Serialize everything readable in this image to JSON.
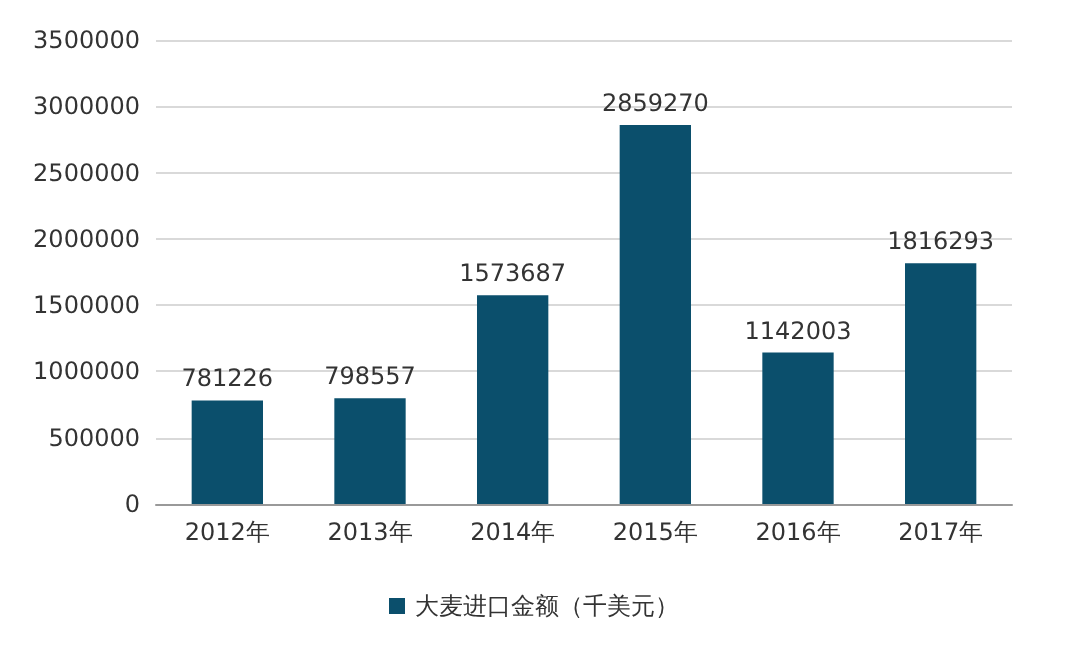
{
  "chart_data": {
    "type": "bar",
    "categories": [
      "2012年",
      "2013年",
      "2014年",
      "2015年",
      "2016年",
      "2017年"
    ],
    "series": [
      {
        "name": "大麦进口金额（千美元）",
        "color": "#0b4f6c",
        "values": [
          781226,
          798557,
          1573687,
          2859270,
          1142003,
          1816293
        ]
      }
    ],
    "ylim": [
      0,
      3500000
    ],
    "yticks": [
      0,
      500000,
      1000000,
      1500000,
      2000000,
      2500000,
      3000000,
      3500000
    ],
    "grid": "y",
    "legend": "bottom",
    "data_labels": true
  }
}
